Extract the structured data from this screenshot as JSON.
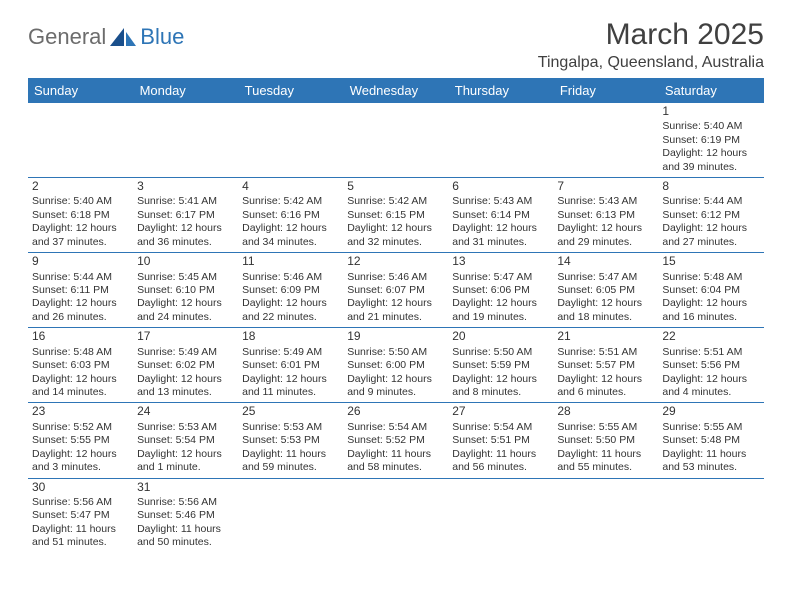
{
  "logo": {
    "text1": "General",
    "text2": "Blue"
  },
  "monthTitle": "March 2025",
  "location": "Tingalpa, Queensland, Australia",
  "colors": {
    "headerBg": "#2e75b6",
    "borderColor": "#2e75b6",
    "logoGray": "#6c6c6c",
    "logoBlue": "#2e75b6"
  },
  "dayHeaders": [
    "Sunday",
    "Monday",
    "Tuesday",
    "Wednesday",
    "Thursday",
    "Friday",
    "Saturday"
  ],
  "weeks": [
    [
      null,
      null,
      null,
      null,
      null,
      null,
      {
        "n": "1",
        "sunrise": "Sunrise: 5:40 AM",
        "sunset": "Sunset: 6:19 PM",
        "daylight": "Daylight: 12 hours and 39 minutes."
      }
    ],
    [
      {
        "n": "2",
        "sunrise": "Sunrise: 5:40 AM",
        "sunset": "Sunset: 6:18 PM",
        "daylight": "Daylight: 12 hours and 37 minutes."
      },
      {
        "n": "3",
        "sunrise": "Sunrise: 5:41 AM",
        "sunset": "Sunset: 6:17 PM",
        "daylight": "Daylight: 12 hours and 36 minutes."
      },
      {
        "n": "4",
        "sunrise": "Sunrise: 5:42 AM",
        "sunset": "Sunset: 6:16 PM",
        "daylight": "Daylight: 12 hours and 34 minutes."
      },
      {
        "n": "5",
        "sunrise": "Sunrise: 5:42 AM",
        "sunset": "Sunset: 6:15 PM",
        "daylight": "Daylight: 12 hours and 32 minutes."
      },
      {
        "n": "6",
        "sunrise": "Sunrise: 5:43 AM",
        "sunset": "Sunset: 6:14 PM",
        "daylight": "Daylight: 12 hours and 31 minutes."
      },
      {
        "n": "7",
        "sunrise": "Sunrise: 5:43 AM",
        "sunset": "Sunset: 6:13 PM",
        "daylight": "Daylight: 12 hours and 29 minutes."
      },
      {
        "n": "8",
        "sunrise": "Sunrise: 5:44 AM",
        "sunset": "Sunset: 6:12 PM",
        "daylight": "Daylight: 12 hours and 27 minutes."
      }
    ],
    [
      {
        "n": "9",
        "sunrise": "Sunrise: 5:44 AM",
        "sunset": "Sunset: 6:11 PM",
        "daylight": "Daylight: 12 hours and 26 minutes."
      },
      {
        "n": "10",
        "sunrise": "Sunrise: 5:45 AM",
        "sunset": "Sunset: 6:10 PM",
        "daylight": "Daylight: 12 hours and 24 minutes."
      },
      {
        "n": "11",
        "sunrise": "Sunrise: 5:46 AM",
        "sunset": "Sunset: 6:09 PM",
        "daylight": "Daylight: 12 hours and 22 minutes."
      },
      {
        "n": "12",
        "sunrise": "Sunrise: 5:46 AM",
        "sunset": "Sunset: 6:07 PM",
        "daylight": "Daylight: 12 hours and 21 minutes."
      },
      {
        "n": "13",
        "sunrise": "Sunrise: 5:47 AM",
        "sunset": "Sunset: 6:06 PM",
        "daylight": "Daylight: 12 hours and 19 minutes."
      },
      {
        "n": "14",
        "sunrise": "Sunrise: 5:47 AM",
        "sunset": "Sunset: 6:05 PM",
        "daylight": "Daylight: 12 hours and 18 minutes."
      },
      {
        "n": "15",
        "sunrise": "Sunrise: 5:48 AM",
        "sunset": "Sunset: 6:04 PM",
        "daylight": "Daylight: 12 hours and 16 minutes."
      }
    ],
    [
      {
        "n": "16",
        "sunrise": "Sunrise: 5:48 AM",
        "sunset": "Sunset: 6:03 PM",
        "daylight": "Daylight: 12 hours and 14 minutes."
      },
      {
        "n": "17",
        "sunrise": "Sunrise: 5:49 AM",
        "sunset": "Sunset: 6:02 PM",
        "daylight": "Daylight: 12 hours and 13 minutes."
      },
      {
        "n": "18",
        "sunrise": "Sunrise: 5:49 AM",
        "sunset": "Sunset: 6:01 PM",
        "daylight": "Daylight: 12 hours and 11 minutes."
      },
      {
        "n": "19",
        "sunrise": "Sunrise: 5:50 AM",
        "sunset": "Sunset: 6:00 PM",
        "daylight": "Daylight: 12 hours and 9 minutes."
      },
      {
        "n": "20",
        "sunrise": "Sunrise: 5:50 AM",
        "sunset": "Sunset: 5:59 PM",
        "daylight": "Daylight: 12 hours and 8 minutes."
      },
      {
        "n": "21",
        "sunrise": "Sunrise: 5:51 AM",
        "sunset": "Sunset: 5:57 PM",
        "daylight": "Daylight: 12 hours and 6 minutes."
      },
      {
        "n": "22",
        "sunrise": "Sunrise: 5:51 AM",
        "sunset": "Sunset: 5:56 PM",
        "daylight": "Daylight: 12 hours and 4 minutes."
      }
    ],
    [
      {
        "n": "23",
        "sunrise": "Sunrise: 5:52 AM",
        "sunset": "Sunset: 5:55 PM",
        "daylight": "Daylight: 12 hours and 3 minutes."
      },
      {
        "n": "24",
        "sunrise": "Sunrise: 5:53 AM",
        "sunset": "Sunset: 5:54 PM",
        "daylight": "Daylight: 12 hours and 1 minute."
      },
      {
        "n": "25",
        "sunrise": "Sunrise: 5:53 AM",
        "sunset": "Sunset: 5:53 PM",
        "daylight": "Daylight: 11 hours and 59 minutes."
      },
      {
        "n": "26",
        "sunrise": "Sunrise: 5:54 AM",
        "sunset": "Sunset: 5:52 PM",
        "daylight": "Daylight: 11 hours and 58 minutes."
      },
      {
        "n": "27",
        "sunrise": "Sunrise: 5:54 AM",
        "sunset": "Sunset: 5:51 PM",
        "daylight": "Daylight: 11 hours and 56 minutes."
      },
      {
        "n": "28",
        "sunrise": "Sunrise: 5:55 AM",
        "sunset": "Sunset: 5:50 PM",
        "daylight": "Daylight: 11 hours and 55 minutes."
      },
      {
        "n": "29",
        "sunrise": "Sunrise: 5:55 AM",
        "sunset": "Sunset: 5:48 PM",
        "daylight": "Daylight: 11 hours and 53 minutes."
      }
    ],
    [
      {
        "n": "30",
        "sunrise": "Sunrise: 5:56 AM",
        "sunset": "Sunset: 5:47 PM",
        "daylight": "Daylight: 11 hours and 51 minutes."
      },
      {
        "n": "31",
        "sunrise": "Sunrise: 5:56 AM",
        "sunset": "Sunset: 5:46 PM",
        "daylight": "Daylight: 11 hours and 50 minutes."
      },
      null,
      null,
      null,
      null,
      null
    ]
  ]
}
